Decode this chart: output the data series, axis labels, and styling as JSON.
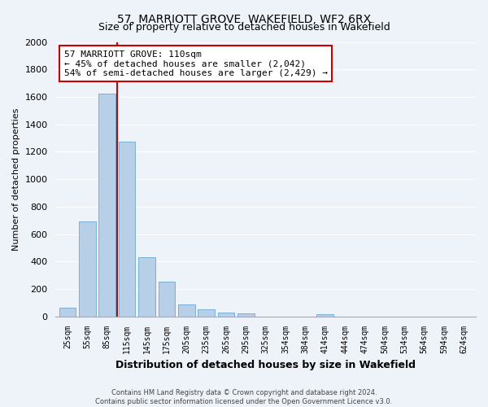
{
  "title": "57, MARRIOTT GROVE, WAKEFIELD, WF2 6RX",
  "subtitle": "Size of property relative to detached houses in Wakefield",
  "xlabel": "Distribution of detached houses by size in Wakefield",
  "ylabel": "Number of detached properties",
  "bar_labels": [
    "25sqm",
    "55sqm",
    "85sqm",
    "115sqm",
    "145sqm",
    "175sqm",
    "205sqm",
    "235sqm",
    "265sqm",
    "295sqm",
    "325sqm",
    "354sqm",
    "384sqm",
    "414sqm",
    "444sqm",
    "474sqm",
    "504sqm",
    "534sqm",
    "564sqm",
    "594sqm",
    "624sqm"
  ],
  "bar_values": [
    65,
    695,
    1625,
    1275,
    430,
    255,
    88,
    50,
    25,
    20,
    0,
    0,
    0,
    15,
    0,
    0,
    0,
    0,
    0,
    0,
    0
  ],
  "bar_color": "#b8cfe8",
  "bar_edge_color": "#7bafd4",
  "property_line_color": "#cc0000",
  "annotation_line1": "57 MARRIOTT GROVE: 110sqm",
  "annotation_line2": "← 45% of detached houses are smaller (2,042)",
  "annotation_line3": "54% of semi-detached houses are larger (2,429) →",
  "annotation_box_color": "#ffffff",
  "annotation_box_edge": "#cc0000",
  "ylim": [
    0,
    2000
  ],
  "yticks": [
    0,
    200,
    400,
    600,
    800,
    1000,
    1200,
    1400,
    1600,
    1800,
    2000
  ],
  "footer_line1": "Contains HM Land Registry data © Crown copyright and database right 2024.",
  "footer_line2": "Contains public sector information licensed under the Open Government Licence v3.0.",
  "bg_color": "#eef2f9",
  "plot_bg_color": "#eef2f9",
  "grid_color": "#ffffff"
}
